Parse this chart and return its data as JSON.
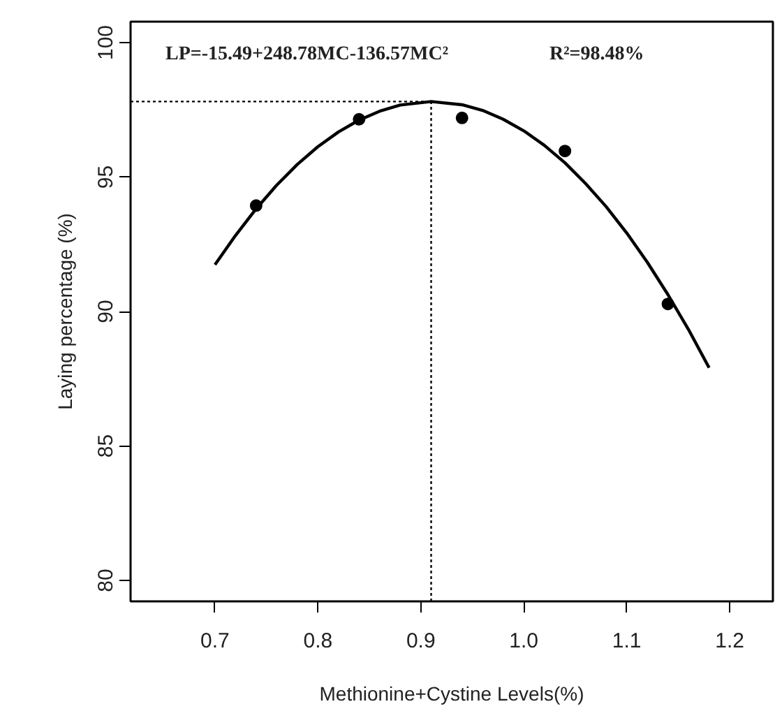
{
  "chart_data": {
    "type": "scatter",
    "xlabel": "Methionine+Cystine Levels(%)",
    "ylabel": "Laying percentage (%)",
    "annotations": [
      "LP=-15.49+248.78MC-136.57MC²",
      "R²=98.48%"
    ],
    "xlim": [
      0.618,
      1.242
    ],
    "ylim": [
      79.22,
      100.78
    ],
    "xticks": [
      0.7,
      0.8,
      0.9,
      {
        "value": 1.0,
        "label": "1.0"
      },
      1.1,
      1.2
    ],
    "yticks": [
      80,
      85,
      90,
      95,
      100
    ],
    "grid": false,
    "series": [
      {
        "color": "#000000",
        "marker": "circle",
        "x": [
          0.74,
          0.84,
          0.94,
          1.04,
          1.14
        ],
        "values": [
          93.94,
          97.15,
          97.2,
          95.97,
          90.28
        ]
      },
      {
        "type": "line",
        "color": "#000000",
        "line_style": "solid",
        "marker": "none",
        "x": [
          0.7,
          0.72,
          0.74,
          0.76,
          0.78,
          0.8,
          0.82,
          0.84,
          0.86,
          0.88,
          0.91,
          0.94,
          0.96,
          0.98,
          1.0,
          1.02,
          1.04,
          1.06,
          1.08,
          1.1,
          1.12,
          1.14,
          1.16,
          1.18
        ],
        "values": [
          91.74,
          92.83,
          93.82,
          94.7,
          95.47,
          96.13,
          96.68,
          97.12,
          97.45,
          97.68,
          97.81,
          97.69,
          97.48,
          97.15,
          96.72,
          96.18,
          95.53,
          94.76,
          93.9,
          92.92,
          91.83,
          90.63,
          89.33,
          87.91
        ]
      }
    ],
    "ref_lines": [
      {
        "axis": "y",
        "value": 97.81,
        "line_style": "dotted",
        "color": "#000000"
      },
      {
        "axis": "x",
        "value": 0.91,
        "line_style": "dotted",
        "color": "#000000"
      }
    ]
  }
}
